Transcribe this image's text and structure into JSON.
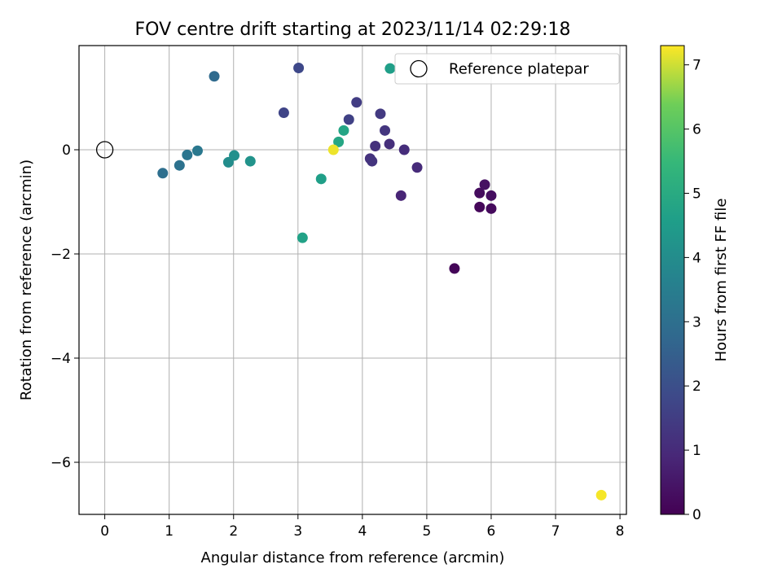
{
  "chart_data": {
    "type": "scatter",
    "title": "FOV centre drift starting at 2023/11/14 02:29:18",
    "xlabel": "Angular distance from reference (arcmin)",
    "ylabel": "Rotation from reference (arcmin)",
    "xlim": [
      -0.4,
      8.1
    ],
    "ylim": [
      -7.0,
      2.0
    ],
    "xticks": [
      0,
      1,
      2,
      3,
      4,
      5,
      6,
      7,
      8
    ],
    "yticks": [
      0,
      -2,
      -4,
      -6
    ],
    "xtick_labels": [
      "0",
      "1",
      "2",
      "3",
      "4",
      "5",
      "6",
      "7",
      "8"
    ],
    "ytick_labels": [
      "0",
      "−2",
      "−4",
      "−6"
    ],
    "grid": true,
    "legend": {
      "position": "top-right",
      "entries": [
        {
          "label": "Reference platepar",
          "marker": "open-circle"
        }
      ]
    },
    "colorbar": {
      "label": "Hours from first FF file",
      "colormap": "viridis",
      "range": [
        0,
        7.3
      ],
      "ticks": [
        0,
        1,
        2,
        3,
        4,
        5,
        6,
        7
      ],
      "tick_labels": [
        "0",
        "1",
        "2",
        "3",
        "4",
        "5",
        "6",
        "7"
      ]
    },
    "reference_point": {
      "x": 0,
      "y": 0
    },
    "series": [
      {
        "points": [
          {
            "x": 5.43,
            "y": -2.28,
            "hours": 0.1
          },
          {
            "x": 5.82,
            "y": -1.1,
            "hours": 0.15
          },
          {
            "x": 6.0,
            "y": -1.13,
            "hours": 0.2
          },
          {
            "x": 5.82,
            "y": -0.83,
            "hours": 0.25
          },
          {
            "x": 6.0,
            "y": -0.88,
            "hours": 0.3
          },
          {
            "x": 5.9,
            "y": -0.67,
            "hours": 0.35
          },
          {
            "x": 4.6,
            "y": -0.88,
            "hours": 0.85
          },
          {
            "x": 4.85,
            "y": -0.34,
            "hours": 1.0
          },
          {
            "x": 4.65,
            "y": 0.0,
            "hours": 1.05
          },
          {
            "x": 4.42,
            "y": 0.11,
            "hours": 1.1
          },
          {
            "x": 4.2,
            "y": 0.07,
            "hours": 1.15
          },
          {
            "x": 4.12,
            "y": -0.17,
            "hours": 1.2
          },
          {
            "x": 4.15,
            "y": -0.22,
            "hours": 1.25
          },
          {
            "x": 4.35,
            "y": 0.37,
            "hours": 1.3
          },
          {
            "x": 4.28,
            "y": 0.69,
            "hours": 1.4
          },
          {
            "x": 3.91,
            "y": 0.91,
            "hours": 1.5
          },
          {
            "x": 3.79,
            "y": 0.58,
            "hours": 1.6
          },
          {
            "x": 2.78,
            "y": 0.71,
            "hours": 1.7
          },
          {
            "x": 3.01,
            "y": 1.57,
            "hours": 1.8
          },
          {
            "x": 1.7,
            "y": 1.41,
            "hours": 2.85
          },
          {
            "x": 0.9,
            "y": -0.45,
            "hours": 3.0
          },
          {
            "x": 1.16,
            "y": -0.3,
            "hours": 3.1
          },
          {
            "x": 1.28,
            "y": -0.1,
            "hours": 3.2
          },
          {
            "x": 1.44,
            "y": -0.02,
            "hours": 3.3
          },
          {
            "x": 1.92,
            "y": -0.24,
            "hours": 4.0
          },
          {
            "x": 2.01,
            "y": -0.11,
            "hours": 4.1
          },
          {
            "x": 2.26,
            "y": -0.22,
            "hours": 4.2
          },
          {
            "x": 3.36,
            "y": -0.56,
            "hours": 4.6
          },
          {
            "x": 3.07,
            "y": -1.69,
            "hours": 4.7
          },
          {
            "x": 3.71,
            "y": 0.37,
            "hours": 4.8
          },
          {
            "x": 3.63,
            "y": 0.15,
            "hours": 4.85
          },
          {
            "x": 4.43,
            "y": 1.56,
            "hours": 4.6
          },
          {
            "x": 3.55,
            "y": 0.0,
            "hours": 7.2
          },
          {
            "x": 7.71,
            "y": -6.63,
            "hours": 7.25
          }
        ]
      }
    ]
  }
}
